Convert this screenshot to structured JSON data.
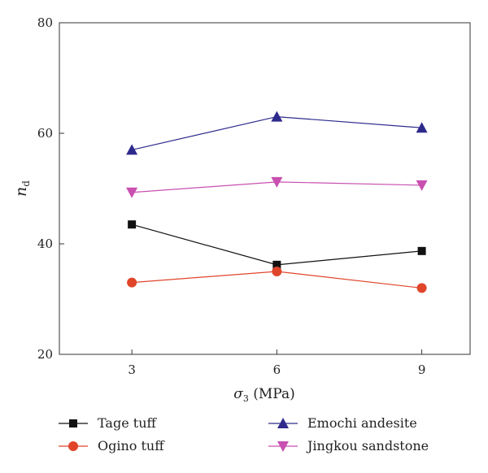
{
  "chart_data": {
    "type": "line",
    "title": "",
    "xlabel": {
      "symbol": "σ",
      "subscript": "3",
      "unit": " (MPa)"
    },
    "ylabel": {
      "symbol": "n",
      "subscript": "d"
    },
    "x": [
      3,
      6,
      9
    ],
    "x_ticks": [
      "3",
      "6",
      "9"
    ],
    "y_ticks": [
      "20",
      "40",
      "60",
      "80"
    ],
    "xlim": [
      1.5,
      10
    ],
    "ylim": [
      20,
      80
    ],
    "grid": false,
    "legend_position": "bottom",
    "series": [
      {
        "name": "Tage tuff",
        "values": [
          43.5,
          36.2,
          38.7
        ],
        "color": "#111111",
        "marker": "square"
      },
      {
        "name": "Ogino tuff",
        "values": [
          33.0,
          35.0,
          32.0
        ],
        "color": "#e0452a",
        "marker": "circle"
      },
      {
        "name": "Emochi andesite",
        "values": [
          57.0,
          63.0,
          61.0
        ],
        "color": "#2e2a8c",
        "marker": "triangle-up"
      },
      {
        "name": "Jingkou sandstone",
        "values": [
          49.3,
          51.2,
          50.6
        ],
        "color": "#c94fb0",
        "marker": "triangle-down"
      }
    ]
  }
}
